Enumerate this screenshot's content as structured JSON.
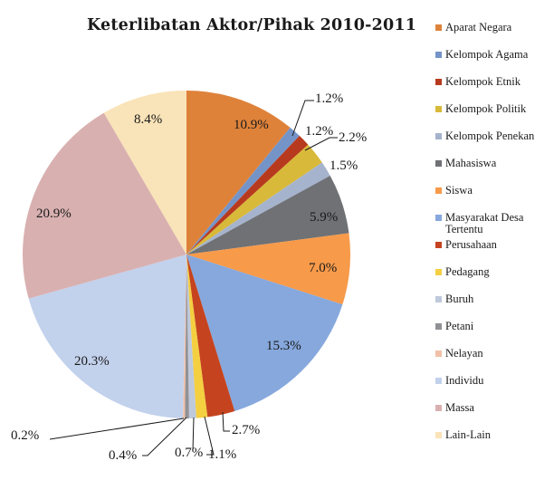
{
  "chart_data": {
    "type": "pie",
    "title": "Keterlibatan Aktor/Pihak 2010-2011",
    "legend_position": "right",
    "start_angle_deg": 0,
    "direction": "clockwise",
    "categories": [
      "Aparat Negara",
      "Kelompok Agama",
      "Kelompok Etnik",
      "Kelompok Politik",
      "Kelompok Penekan",
      "Mahasiswa",
      "Siswa",
      "Masyarakat Desa Tertentu",
      "Perusahaan",
      "Pedagang",
      "Buruh",
      "Petani",
      "Nelayan",
      "Individu",
      "Massa",
      "Lain-Lain"
    ],
    "values": [
      10.9,
      1.2,
      1.2,
      2.2,
      1.5,
      5.9,
      7.0,
      15.3,
      2.7,
      1.1,
      0.7,
      0.4,
      0.2,
      20.3,
      20.9,
      8.4
    ],
    "labels": [
      "10.9%",
      "1.2%",
      "1.2%",
      "2.2%",
      "1.5%",
      "5.9%",
      "7.0%",
      "15.3%",
      "2.7%",
      "1.1%",
      "0.7%",
      "0.4%",
      "0.2%",
      "20.3%",
      "20.9%",
      "8.4%"
    ],
    "colors": [
      "#de823a",
      "#7494c8",
      "#b73a1e",
      "#d8b93a",
      "#a5b3cc",
      "#6f7175",
      "#f79a4a",
      "#86a8dd",
      "#c5441f",
      "#f4cf40",
      "#bfc9dc",
      "#909195",
      "#f2c0a8",
      "#c2d1ec",
      "#d9b0b0",
      "#f9e3b8"
    ],
    "unit": "%"
  },
  "title": "Keterlibatan Aktor/Pihak 2010-2011",
  "legend": [
    {
      "label": "Aparat Negara",
      "color": "#de823a"
    },
    {
      "label": "Kelompok Agama",
      "color": "#7494c8"
    },
    {
      "label": "Kelompok Etnik",
      "color": "#b73a1e"
    },
    {
      "label": "Kelompok Politik",
      "color": "#d8b93a"
    },
    {
      "label": "Kelompok Penekan",
      "color": "#a5b3cc"
    },
    {
      "label": "Mahasiswa",
      "color": "#6f7175"
    },
    {
      "label": "Siswa",
      "color": "#f79a4a"
    },
    {
      "label": "Masyarakat Desa Tertentu",
      "color": "#86a8dd"
    },
    {
      "label": "Perusahaan",
      "color": "#c5441f"
    },
    {
      "label": "Pedagang",
      "color": "#f4cf40"
    },
    {
      "label": "Buruh",
      "color": "#bfc9dc"
    },
    {
      "label": "Petani",
      "color": "#909195"
    },
    {
      "label": "Nelayan",
      "color": "#f2c0a8"
    },
    {
      "label": "Individu",
      "color": "#c2d1ec"
    },
    {
      "label": "Massa",
      "color": "#d9b0b0"
    },
    {
      "label": "Lain-Lain",
      "color": "#f9e3b8"
    }
  ]
}
